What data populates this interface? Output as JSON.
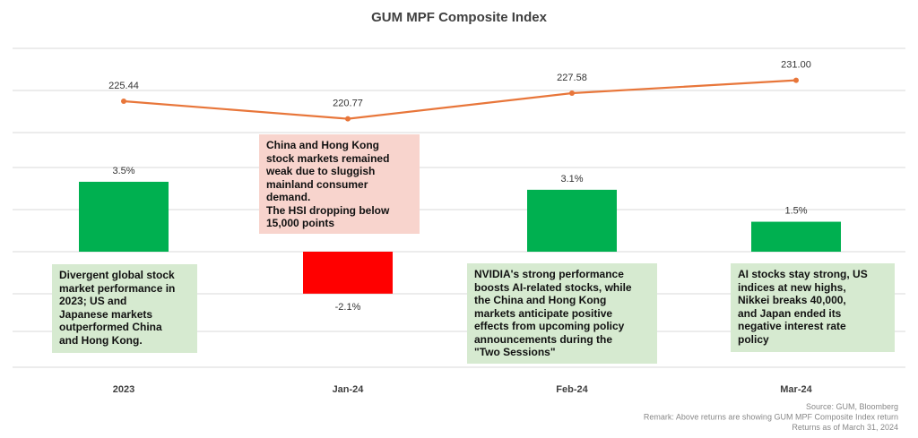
{
  "colors": {
    "positive_bar": "#00b050",
    "negative_bar": "#ff0000",
    "line": "#e8763a",
    "note_green_bg": "#d6ead0",
    "note_red_bg": "#f8d4cd",
    "gridline": "#d9d9d9"
  },
  "chart_data": {
    "type": "bar",
    "title": "GUM MPF Composite Index",
    "categories": [
      "2023",
      "Jan-24",
      "Feb-24",
      "Mar-24"
    ],
    "series": [
      {
        "type": "bar",
        "values": [
          3.5,
          -2.1,
          3.1,
          1.5
        ],
        "labels": [
          "3.5%",
          "-2.1%",
          "3.1%",
          "1.5%"
        ]
      },
      {
        "type": "line",
        "values": [
          225.44,
          220.77,
          227.58,
          231.0
        ],
        "labels": [
          "225.44",
          "220.77",
          "227.58",
          "231.00"
        ]
      }
    ],
    "grid": true,
    "annotations": [
      {
        "category": "2023",
        "style": "green",
        "text": "Divergent global stock\nmarket performance in\n2023; US and\nJapanese markets\noutperformed China\nand Hong Kong."
      },
      {
        "category": "Jan-24",
        "style": "red",
        "text": "China and Hong Kong\nstock markets remained\nweak due to sluggish\nmainland consumer\ndemand.\nThe HSI dropping below\n15,000 points"
      },
      {
        "category": "Feb-24",
        "style": "green",
        "text": "NVIDIA's strong performance\nboosts AI-related stocks, while\nthe China and Hong Kong\nmarkets anticipate positive\neffects from upcoming policy\nannouncements during the\n\"Two Sessions\""
      },
      {
        "category": "Mar-24",
        "style": "green",
        "text": "AI stocks stay strong, US\nindices at new highs,\nNikkei breaks 40,000,\nand Japan ended its\nnegative interest rate\npolicy"
      }
    ],
    "footnotes": [
      "Source: GUM, Bloomberg",
      "Remark: Above returns are showing GUM MPF Composite Index return",
      "Returns as of March 31, 2024"
    ]
  }
}
